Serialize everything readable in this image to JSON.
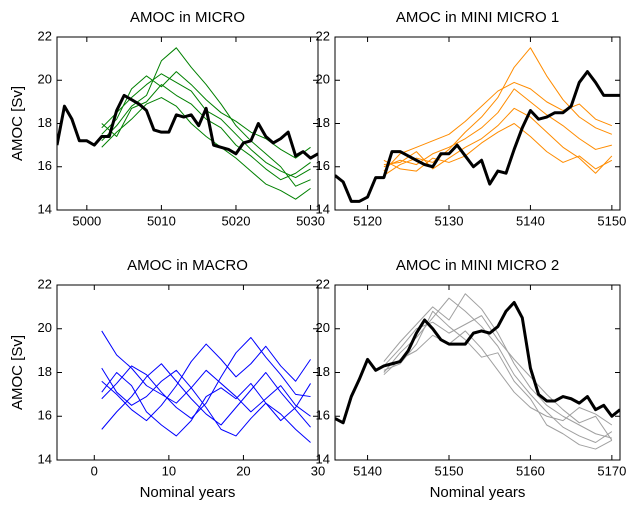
{
  "chart_data": [
    {
      "type": "line",
      "title": "AMOC in MICRO",
      "ylabel": "AMOC [Sv]",
      "xlim": [
        4996,
        5031
      ],
      "ylim": [
        14,
        22
      ],
      "xticks": [
        5000,
        5010,
        5020,
        5030
      ],
      "yticks": [
        14,
        16,
        18,
        20,
        22
      ],
      "series": [
        {
          "color": "#008000",
          "x": [
            5002,
            5004,
            5006,
            5008,
            5010,
            5012,
            5014,
            5016,
            5018,
            5020,
            5022,
            5024,
            5026,
            5028,
            5030
          ],
          "values": [
            17.8,
            18.5,
            19.2,
            19.8,
            20.3,
            19.9,
            19.5,
            18.6,
            18.2,
            17.5,
            16.8,
            16.2,
            15.8,
            15.5,
            15.9
          ]
        },
        {
          "color": "#008000",
          "x": [
            5002,
            5004,
            5006,
            5008,
            5010,
            5012,
            5014,
            5016,
            5018,
            5020,
            5022,
            5024,
            5026,
            5028,
            5030
          ],
          "values": [
            17.2,
            17.9,
            18.8,
            19.3,
            20.9,
            21.5,
            20.6,
            19.8,
            18.9,
            17.9,
            17.2,
            16.6,
            16.0,
            15.1,
            15.4
          ]
        },
        {
          "color": "#008000",
          "x": [
            5002,
            5004,
            5006,
            5008,
            5010,
            5012,
            5014,
            5016,
            5018,
            5020,
            5022,
            5024,
            5026,
            5028,
            5030
          ],
          "values": [
            16.9,
            17.6,
            18.2,
            18.9,
            19.2,
            18.8,
            18.0,
            17.4,
            16.9,
            16.4,
            15.8,
            15.2,
            14.9,
            14.5,
            15.0
          ]
        },
        {
          "color": "#008000",
          "x": [
            5002,
            5004,
            5006,
            5008,
            5010,
            5012,
            5014,
            5016,
            5018,
            5020,
            5022,
            5024,
            5026,
            5028,
            5030
          ],
          "values": [
            17.5,
            18.2,
            19.6,
            20.2,
            19.7,
            20.4,
            19.8,
            19.1,
            18.5,
            18.1,
            17.6,
            17.3,
            16.8,
            16.4,
            16.9
          ]
        },
        {
          "color": "#008000",
          "x": [
            5002,
            5004,
            5006,
            5008,
            5010,
            5012,
            5014,
            5016,
            5018,
            5020,
            5022,
            5024,
            5026,
            5028,
            5030
          ],
          "values": [
            18.0,
            17.4,
            18.7,
            19.0,
            19.8,
            19.3,
            18.9,
            18.2,
            17.8,
            17.0,
            16.5,
            15.9,
            15.4,
            15.7,
            16.2
          ]
        },
        {
          "color": "#000000",
          "bold": true,
          "x": [
            4996,
            4997,
            4998,
            4999,
            5000,
            5001,
            5002,
            5003,
            5004,
            5005,
            5006,
            5007,
            5008,
            5009,
            5010,
            5011,
            5012,
            5013,
            5014,
            5015,
            5016,
            5017,
            5018,
            5019,
            5020,
            5021,
            5022,
            5023,
            5024,
            5025,
            5026,
            5027,
            5028,
            5029,
            5030,
            5031
          ],
          "values": [
            17.0,
            18.8,
            18.2,
            17.2,
            17.2,
            17.0,
            17.4,
            17.4,
            18.6,
            19.3,
            19.1,
            18.9,
            18.6,
            17.7,
            17.6,
            17.6,
            18.4,
            18.3,
            18.4,
            17.9,
            18.7,
            17.0,
            16.9,
            16.8,
            16.6,
            17.1,
            17.2,
            18.0,
            17.4,
            17.1,
            17.3,
            17.6,
            16.5,
            16.7,
            16.4,
            16.6
          ]
        }
      ]
    },
    {
      "type": "line",
      "title": "AMOC in MINI MICRO 1",
      "xlim": [
        5116,
        5151
      ],
      "ylim": [
        14,
        22
      ],
      "xticks": [
        5120,
        5130,
        5140,
        5150
      ],
      "yticks": [
        14,
        16,
        18,
        20,
        22
      ],
      "series": [
        {
          "color": "#ff8c00",
          "x": [
            5122,
            5124,
            5126,
            5128,
            5130,
            5132,
            5134,
            5136,
            5138,
            5140,
            5142,
            5144,
            5146,
            5148,
            5150
          ],
          "values": [
            16.0,
            16.3,
            16.1,
            16.6,
            16.9,
            17.3,
            17.8,
            18.5,
            19.6,
            19.0,
            18.4,
            17.9,
            17.3,
            16.8,
            17.0
          ]
        },
        {
          "color": "#ff8c00",
          "x": [
            5122,
            5124,
            5126,
            5128,
            5130,
            5132,
            5134,
            5136,
            5138,
            5140,
            5142,
            5144,
            5146,
            5148,
            5150
          ],
          "values": [
            15.6,
            16.1,
            16.4,
            16.2,
            16.8,
            17.6,
            18.3,
            19.2,
            20.6,
            21.5,
            20.2,
            19.1,
            18.3,
            17.8,
            17.5
          ]
        },
        {
          "color": "#ff8c00",
          "x": [
            5122,
            5124,
            5126,
            5128,
            5130,
            5132,
            5134,
            5136,
            5138,
            5140,
            5142,
            5144,
            5146,
            5148,
            5150
          ],
          "values": [
            16.3,
            15.9,
            15.8,
            16.4,
            16.2,
            16.5,
            17.1,
            17.6,
            18.0,
            17.4,
            16.7,
            16.2,
            16.5,
            15.9,
            16.3
          ]
        },
        {
          "color": "#ff8c00",
          "x": [
            5122,
            5124,
            5126,
            5128,
            5130,
            5132,
            5134,
            5136,
            5138,
            5140,
            5142,
            5144,
            5146,
            5148,
            5150
          ],
          "values": [
            15.8,
            16.6,
            16.9,
            17.2,
            17.5,
            18.1,
            18.8,
            19.5,
            19.9,
            19.6,
            19.0,
            18.6,
            18.9,
            18.2,
            17.9
          ]
        },
        {
          "color": "#ff8c00",
          "x": [
            5122,
            5124,
            5126,
            5128,
            5130,
            5132,
            5134,
            5136,
            5138,
            5140,
            5142,
            5144,
            5146,
            5148,
            5150
          ],
          "values": [
            16.1,
            16.2,
            16.7,
            15.9,
            16.4,
            16.9,
            17.3,
            17.9,
            18.7,
            18.3,
            17.6,
            16.9,
            16.4,
            15.7,
            16.5
          ]
        },
        {
          "color": "#000000",
          "bold": true,
          "x": [
            5116,
            5117,
            5118,
            5119,
            5120,
            5121,
            5122,
            5123,
            5124,
            5125,
            5126,
            5127,
            5128,
            5129,
            5130,
            5131,
            5132,
            5133,
            5134,
            5135,
            5136,
            5137,
            5138,
            5139,
            5140,
            5141,
            5142,
            5143,
            5144,
            5145,
            5146,
            5147,
            5148,
            5149,
            5150,
            5151
          ],
          "values": [
            15.6,
            15.3,
            14.4,
            14.4,
            14.6,
            15.5,
            15.5,
            16.7,
            16.7,
            16.5,
            16.3,
            16.1,
            16.0,
            16.6,
            16.6,
            17.0,
            16.5,
            16.0,
            16.3,
            15.2,
            15.8,
            15.7,
            16.8,
            17.8,
            18.6,
            18.2,
            18.3,
            18.5,
            18.5,
            18.8,
            19.9,
            20.4,
            19.9,
            19.3,
            19.3,
            19.3
          ]
        }
      ]
    },
    {
      "type": "line",
      "title": "AMOC in MACRO",
      "ylabel": "AMOC [Sv]",
      "xlabel": "Nominal years",
      "xlim": [
        -5,
        30
      ],
      "ylim": [
        14,
        22
      ],
      "xticks": [
        0,
        10,
        20,
        30
      ],
      "yticks": [
        14,
        16,
        18,
        20,
        22
      ],
      "series": [
        {
          "color": "#0000ff",
          "x": [
            1,
            3,
            5,
            7,
            9,
            11,
            13,
            15,
            17,
            19,
            21,
            23,
            25,
            27,
            29
          ],
          "values": [
            19.9,
            18.8,
            18.2,
            17.4,
            17.0,
            16.6,
            17.3,
            18.1,
            17.5,
            16.9,
            16.2,
            16.8,
            17.4,
            16.5,
            16.0
          ]
        },
        {
          "color": "#0000ff",
          "x": [
            1,
            3,
            5,
            7,
            9,
            11,
            13,
            15,
            17,
            19,
            21,
            23,
            25,
            27,
            29
          ],
          "values": [
            15.4,
            16.2,
            16.9,
            17.8,
            18.4,
            17.6,
            16.8,
            16.1,
            15.6,
            16.4,
            17.2,
            18.0,
            17.1,
            16.3,
            15.5
          ]
        },
        {
          "color": "#0000ff",
          "x": [
            1,
            3,
            5,
            7,
            9,
            11,
            13,
            15,
            17,
            19,
            21,
            23,
            25,
            27,
            29
          ],
          "values": [
            17.6,
            17.0,
            16.3,
            15.8,
            16.5,
            17.4,
            18.5,
            19.3,
            18.6,
            17.8,
            18.4,
            19.2,
            18.3,
            17.6,
            18.6
          ]
        },
        {
          "color": "#0000ff",
          "x": [
            1,
            3,
            5,
            7,
            9,
            11,
            13,
            15,
            17,
            19,
            21,
            23,
            25,
            27,
            29
          ],
          "values": [
            16.8,
            17.5,
            18.3,
            17.9,
            17.1,
            16.4,
            15.9,
            16.6,
            17.8,
            18.9,
            19.6,
            18.7,
            17.9,
            17.0,
            16.9
          ]
        },
        {
          "color": "#0000ff",
          "x": [
            1,
            3,
            5,
            7,
            9,
            11,
            13,
            15,
            17,
            19,
            21,
            23,
            25,
            27,
            29
          ],
          "values": [
            18.2,
            17.1,
            16.5,
            16.9,
            17.6,
            18.1,
            17.3,
            16.4,
            15.4,
            15.1,
            15.9,
            16.6,
            16.1,
            15.4,
            14.8
          ]
        },
        {
          "color": "#0000ff",
          "x": [
            1,
            3,
            5,
            7,
            9,
            11,
            13,
            15,
            17,
            19,
            21,
            23,
            25,
            27,
            29
          ],
          "values": [
            17.1,
            18.0,
            17.4,
            16.2,
            15.6,
            15.1,
            15.8,
            16.9,
            17.3,
            16.8,
            17.5,
            16.6,
            15.8,
            16.4,
            17.5
          ]
        }
      ]
    },
    {
      "type": "line",
      "title": "AMOC in MINI MICRO 2",
      "xlabel": "Nominal years",
      "xlim": [
        5136,
        5171
      ],
      "ylim": [
        14,
        22
      ],
      "xticks": [
        5140,
        5150,
        5160,
        5170
      ],
      "yticks": [
        14,
        16,
        18,
        20,
        22
      ],
      "series": [
        {
          "color": "#a0a0a0",
          "x": [
            5142,
            5144,
            5146,
            5148,
            5150,
            5152,
            5154,
            5156,
            5158,
            5160,
            5162,
            5164,
            5166,
            5168,
            5170
          ],
          "values": [
            18.0,
            18.9,
            19.6,
            20.5,
            21.4,
            20.8,
            20.1,
            19.2,
            17.9,
            17.0,
            16.2,
            15.5,
            15.1,
            14.8,
            15.3
          ]
        },
        {
          "color": "#a0a0a0",
          "x": [
            5142,
            5144,
            5146,
            5148,
            5150,
            5152,
            5154,
            5156,
            5158,
            5160,
            5162,
            5164,
            5166,
            5168,
            5170
          ],
          "values": [
            18.5,
            19.4,
            20.2,
            21.0,
            20.4,
            21.6,
            20.9,
            19.8,
            18.4,
            17.3,
            16.5,
            16.0,
            15.6,
            15.2,
            15.0
          ]
        },
        {
          "color": "#a0a0a0",
          "x": [
            5142,
            5144,
            5146,
            5148,
            5150,
            5152,
            5154,
            5156,
            5158,
            5160,
            5162,
            5164,
            5166,
            5168,
            5170
          ],
          "values": [
            17.9,
            18.6,
            19.0,
            19.7,
            19.3,
            19.9,
            19.1,
            18.1,
            17.1,
            16.4,
            16.0,
            15.8,
            16.4,
            16.1,
            15.6
          ]
        },
        {
          "color": "#a0a0a0",
          "x": [
            5142,
            5144,
            5146,
            5148,
            5150,
            5152,
            5154,
            5156,
            5158,
            5160,
            5162,
            5164,
            5166,
            5168,
            5170
          ],
          "values": [
            18.3,
            19.1,
            20.0,
            20.3,
            19.8,
            20.2,
            20.6,
            19.5,
            18.6,
            17.8,
            17.0,
            16.3,
            15.7,
            16.0,
            14.9
          ]
        },
        {
          "color": "#a0a0a0",
          "x": [
            5142,
            5144,
            5146,
            5148,
            5150,
            5152,
            5154,
            5156,
            5158,
            5160,
            5162,
            5164,
            5166,
            5168,
            5170
          ],
          "values": [
            18.1,
            18.4,
            19.3,
            20.8,
            20.1,
            19.5,
            18.7,
            18.9,
            17.6,
            16.8,
            15.6,
            15.2,
            14.7,
            14.5,
            14.9
          ]
        },
        {
          "color": "#000000",
          "bold": true,
          "x": [
            5136,
            5137,
            5138,
            5139,
            5140,
            5141,
            5142,
            5143,
            5144,
            5145,
            5146,
            5147,
            5148,
            5149,
            5150,
            5151,
            5152,
            5153,
            5154,
            5155,
            5156,
            5157,
            5158,
            5159,
            5160,
            5161,
            5162,
            5163,
            5164,
            5165,
            5166,
            5167,
            5168,
            5169,
            5170,
            5171
          ],
          "values": [
            15.9,
            15.7,
            16.9,
            17.7,
            18.6,
            18.1,
            18.3,
            18.4,
            18.5,
            19.0,
            19.8,
            20.4,
            20.0,
            19.5,
            19.3,
            19.3,
            19.3,
            19.8,
            19.9,
            19.8,
            20.1,
            20.8,
            21.2,
            20.5,
            18.2,
            17.0,
            16.7,
            16.7,
            16.9,
            16.8,
            16.6,
            16.9,
            16.3,
            16.5,
            16.0,
            16.3
          ]
        }
      ]
    }
  ]
}
